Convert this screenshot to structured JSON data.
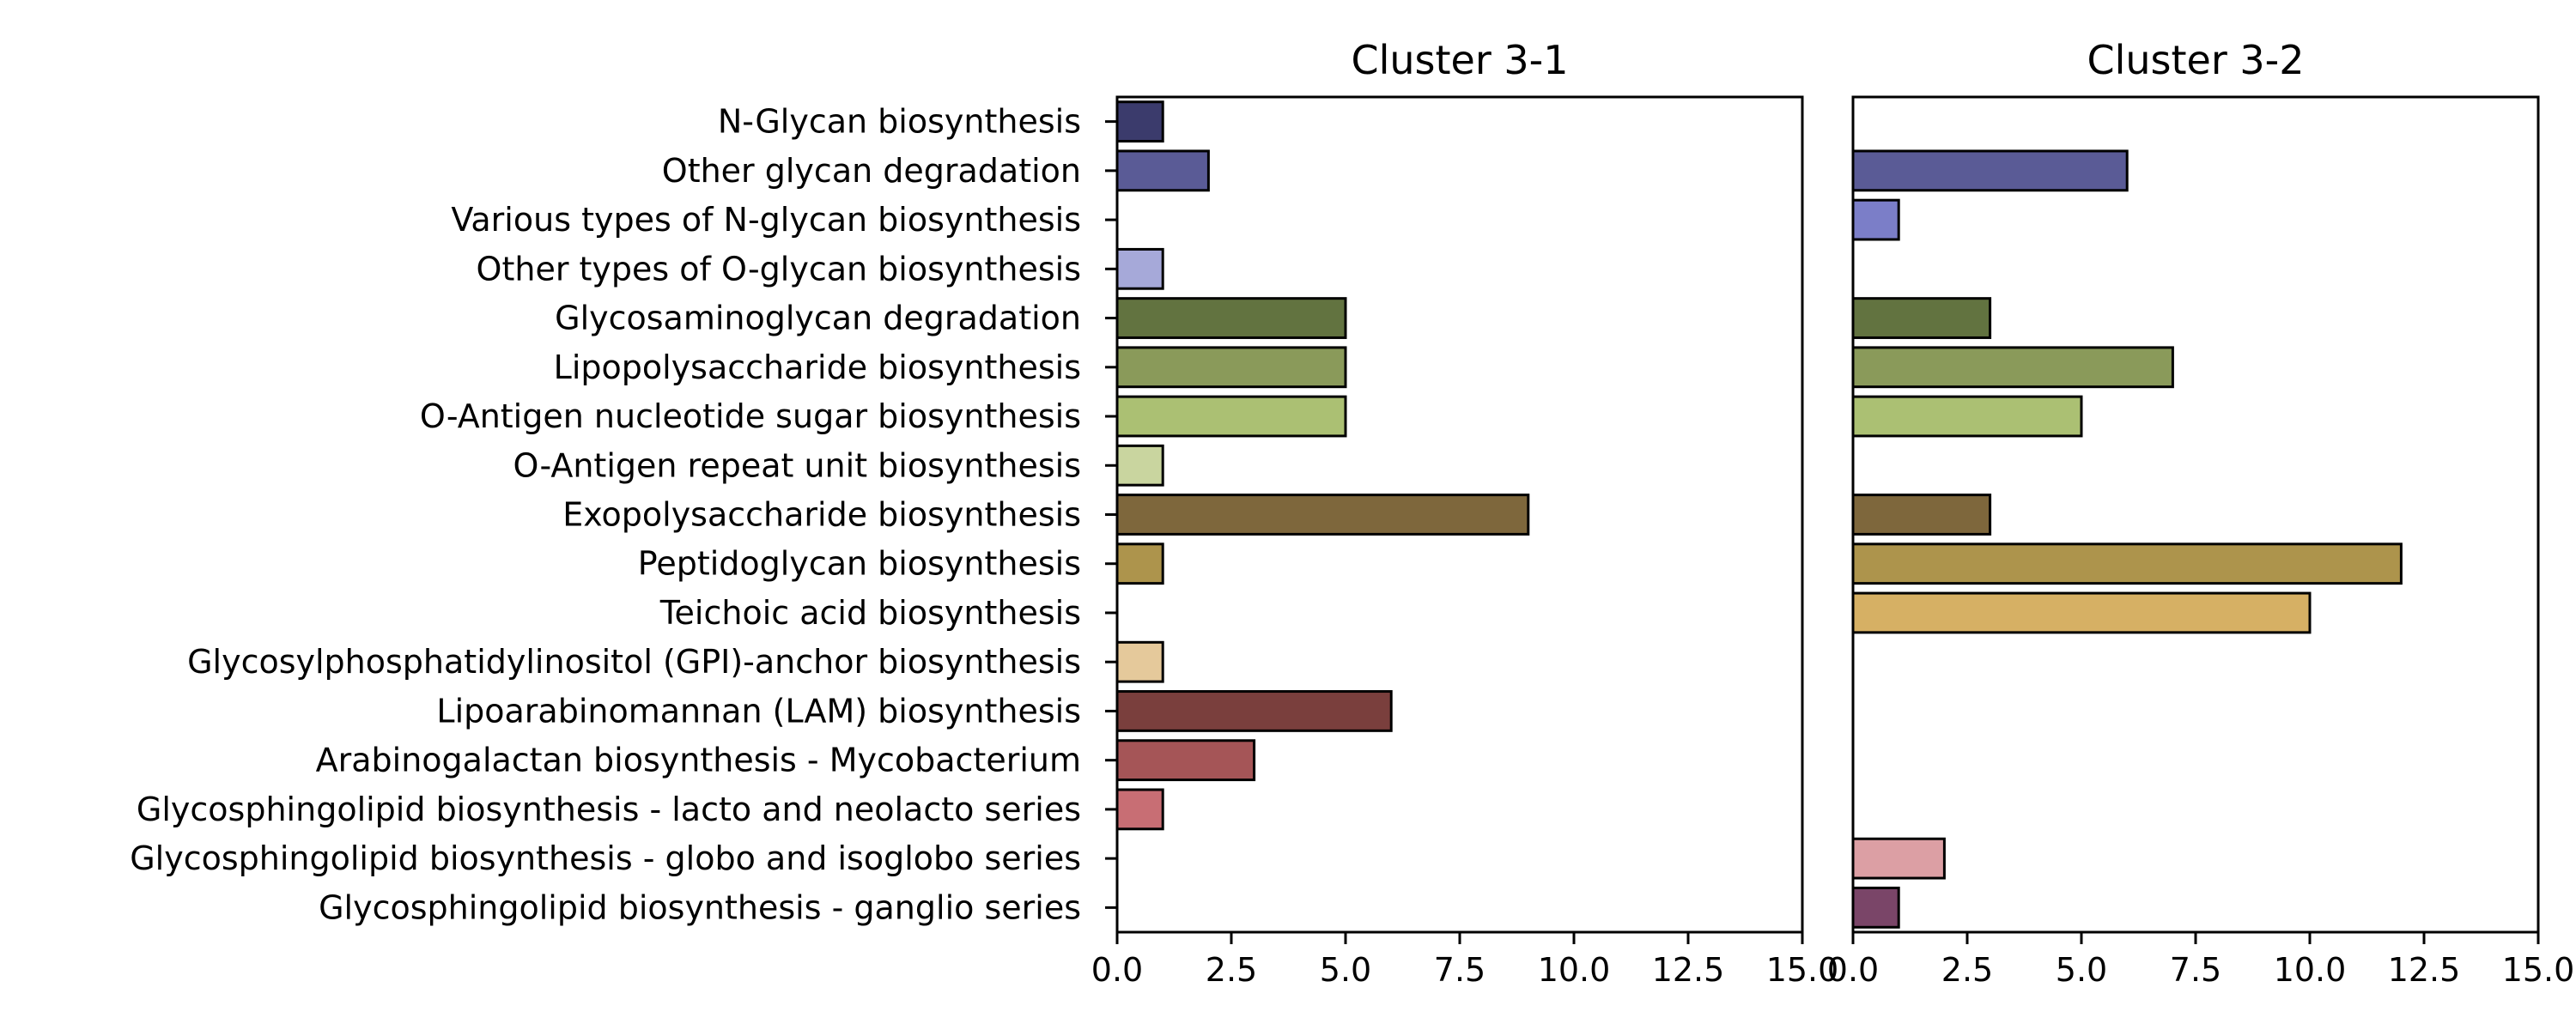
{
  "chart_data": {
    "type": "bar",
    "orientation": "horizontal",
    "categories": [
      "N-Glycan biosynthesis",
      "Other glycan degradation",
      "Various types of N-glycan biosynthesis",
      "Other types of O-glycan biosynthesis",
      "Glycosaminoglycan degradation",
      "Lipopolysaccharide biosynthesis",
      "O-Antigen nucleotide sugar biosynthesis",
      "O-Antigen repeat unit biosynthesis",
      "Exopolysaccharide biosynthesis",
      "Peptidoglycan biosynthesis",
      "Teichoic acid biosynthesis",
      "Glycosylphosphatidylinositol (GPI)-anchor biosynthesis",
      "Lipoarabinomannan (LAM) biosynthesis",
      "Arabinogalactan biosynthesis - Mycobacterium",
      "Glycosphingolipid biosynthesis - lacto and neolacto series",
      "Glycosphingolipid biosynthesis - globo and isoglobo series",
      "Glycosphingolipid biosynthesis - ganglio series"
    ],
    "colors": [
      "#3b3b6c",
      "#5a5b96",
      "#7b7ec8",
      "#a6a9d9",
      "#627340",
      "#8a9a5a",
      "#abc073",
      "#c9d59f",
      "#7e673c",
      "#ad944c",
      "#d6b064",
      "#e5c99b",
      "#7a3f3d",
      "#a55557",
      "#c86e74",
      "#dc9fa4",
      "#7a4568"
    ],
    "xlim": [
      0,
      15
    ],
    "xticks": [
      "0.0",
      "2.5",
      "5.0",
      "7.5",
      "10.0",
      "12.5",
      "15.0"
    ],
    "panels": [
      {
        "title": "Cluster 3-1",
        "values": [
          1,
          2,
          0,
          1,
          5,
          5,
          5,
          1,
          9,
          1,
          0,
          1,
          6,
          3,
          1,
          0,
          0
        ]
      },
      {
        "title": "Cluster 3-2",
        "values": [
          0,
          6,
          1,
          0,
          3,
          7,
          5,
          0,
          3,
          12,
          10,
          0,
          0,
          0,
          0,
          2,
          1
        ]
      }
    ]
  }
}
